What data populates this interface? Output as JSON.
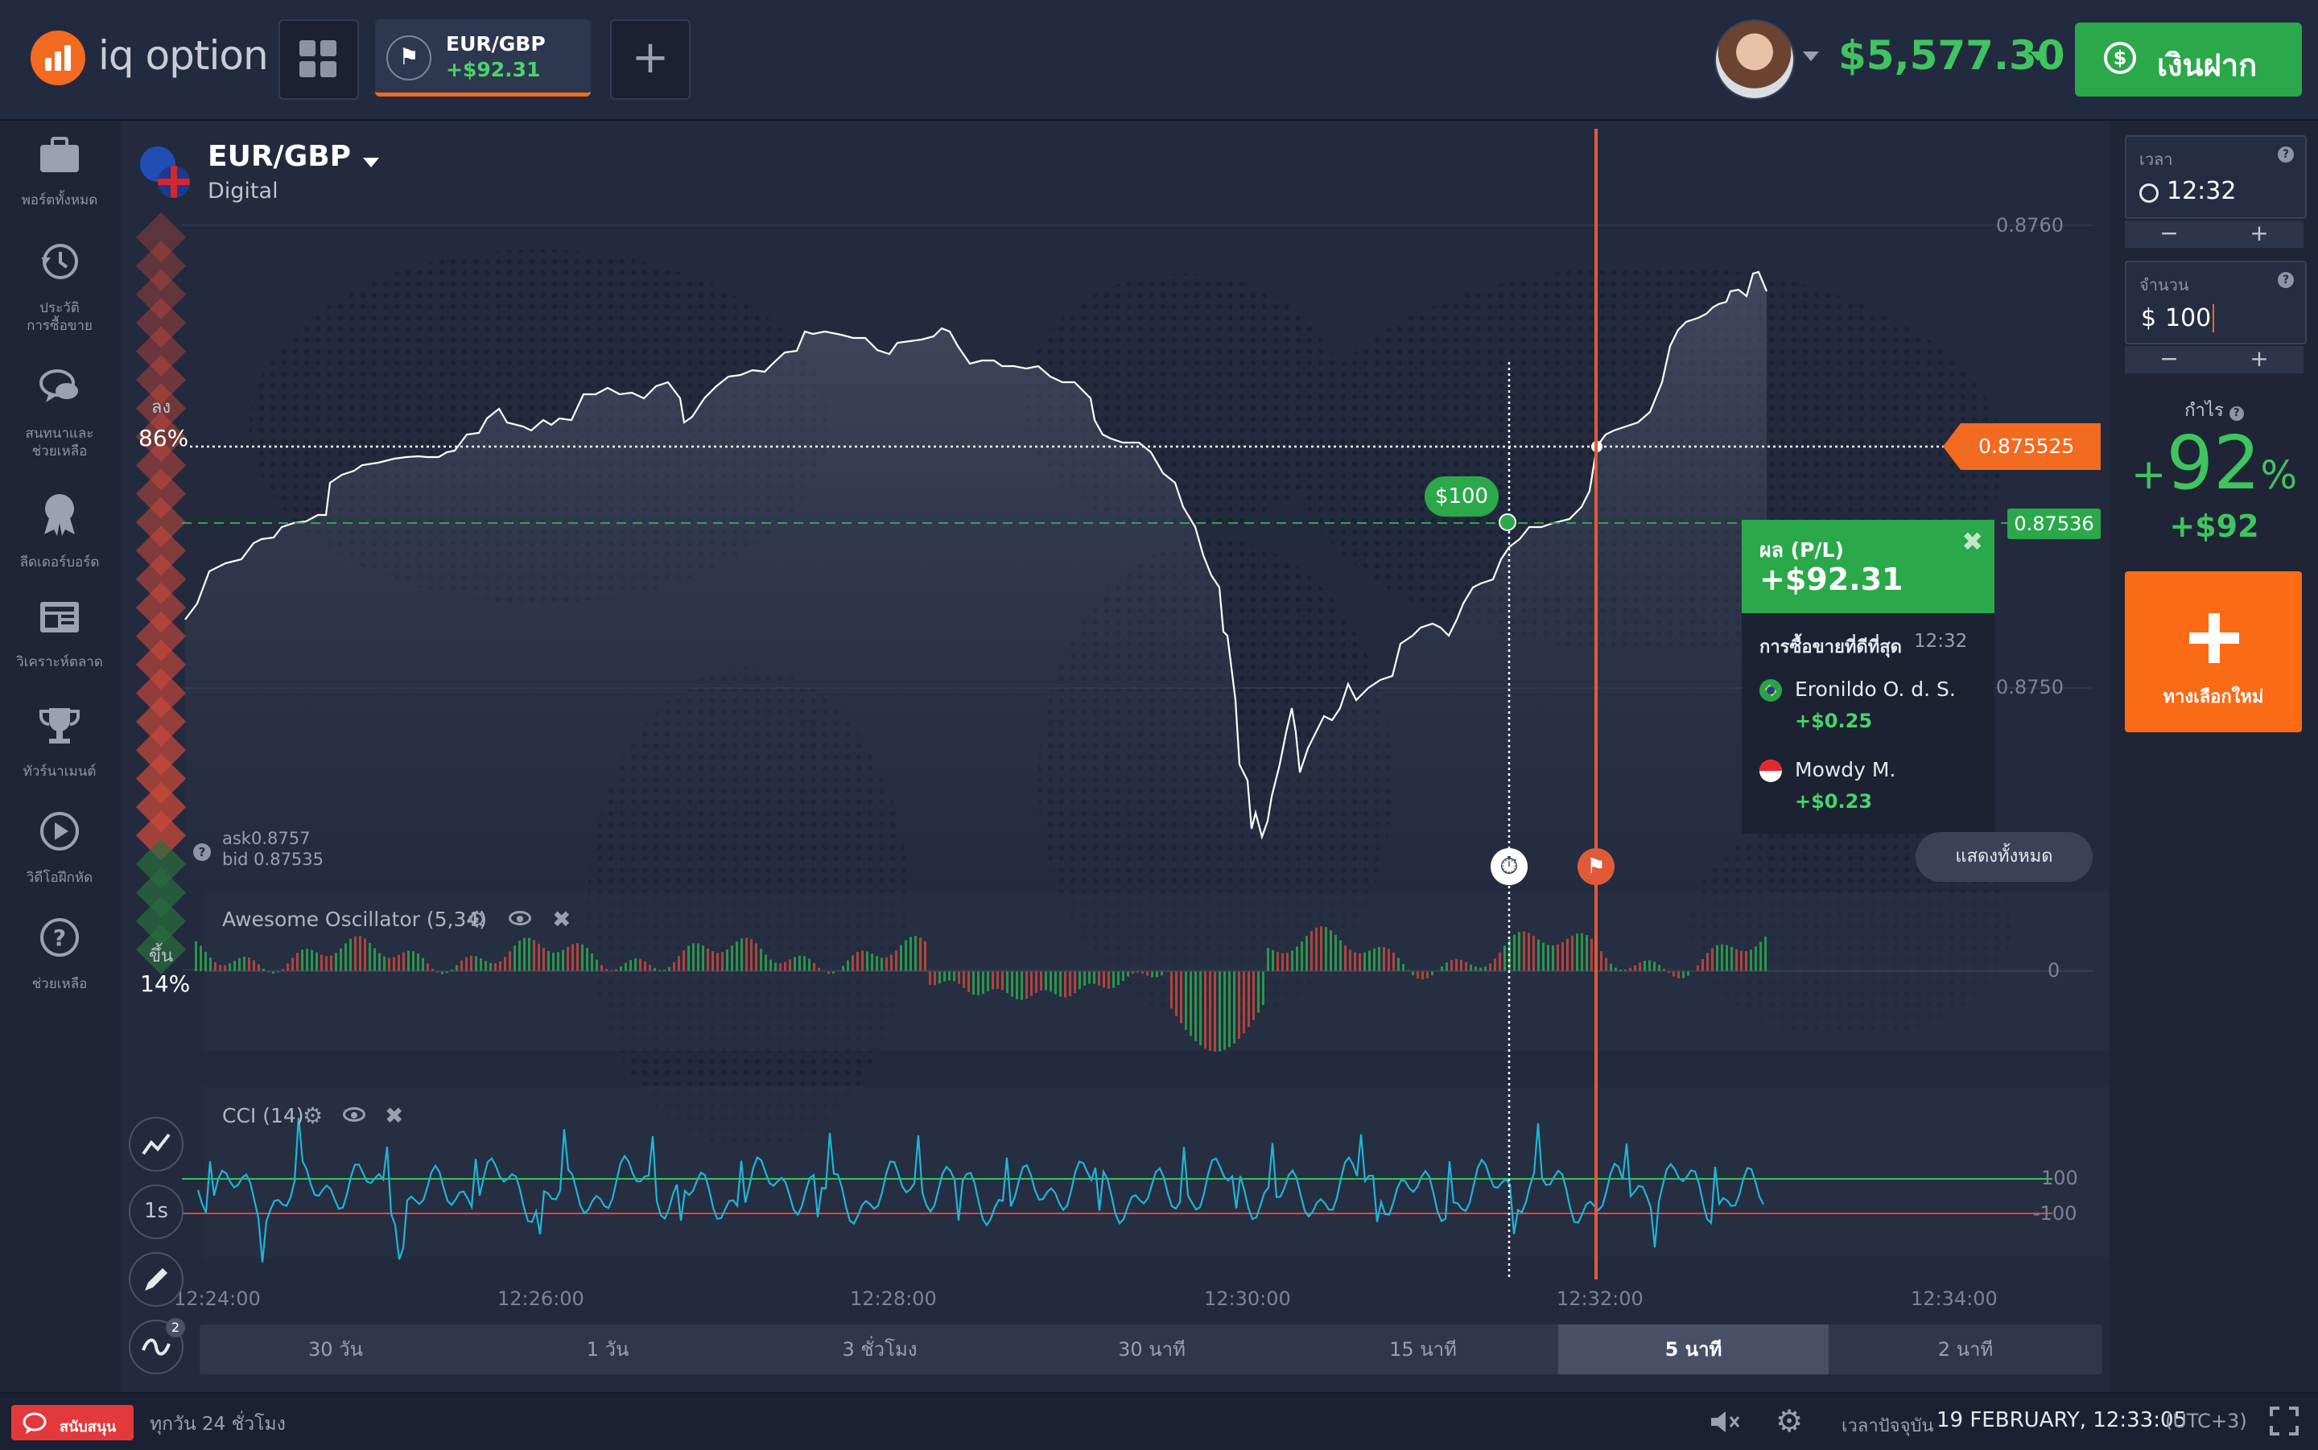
{
  "header": {
    "logo_text": "iq option",
    "asset_tab": {
      "name": "EUR/GBP",
      "profit": "+$92.31"
    },
    "balance": "$5,577.30",
    "deposit_label": "เงินฝาก"
  },
  "sidebar": {
    "items": [
      {
        "icon": "briefcase-icon",
        "label": "พอร์ตทั้งหมด"
      },
      {
        "icon": "history-icon",
        "label": "ประวัติ\nการซื้อขาย"
      },
      {
        "icon": "chat-icon",
        "label": "สนทนาและ\nช่วยเหลือ"
      },
      {
        "icon": "award-icon",
        "label": "ลีดเดอร์บอร์ด"
      },
      {
        "icon": "news-icon",
        "label": "วิเคราะห์ตลาด"
      },
      {
        "icon": "trophy-icon",
        "label": "ทัวร์นาเมนต์"
      },
      {
        "icon": "play-icon",
        "label": "วิดีโอฝึกหัด"
      },
      {
        "icon": "help-icon",
        "label": "ช่วยเหลือ"
      }
    ]
  },
  "asset": {
    "name": "EUR/GBP",
    "type": "Digital",
    "ask": "ask0.8757",
    "bid": "bid 0.87535"
  },
  "sentiment": {
    "down_label": "ลง",
    "down_pct": "86%",
    "up_label": "ขึ้น",
    "up_pct": "14%",
    "down_value": 0.86
  },
  "price_axis": {
    "p1": "0.8760",
    "p2": "0.8750",
    "current_price": "0.875525",
    "strike_price": "0.87536"
  },
  "trade": {
    "investment_badge": "$100",
    "pl_title": "ผล (P/L)",
    "pl_value": "+$92.31",
    "best_trades_title": "การซื้อขายที่ดีที่สุด",
    "best_trades_time": "12:32",
    "traders": [
      {
        "name": "Eronildo O. d. S.",
        "profit": "+$0.25",
        "flag": "brazil-flag-icon"
      },
      {
        "name": "Mowdy M.",
        "profit": "+$0.23",
        "flag": "indonesia-flag-icon"
      }
    ],
    "show_all": "แสดงทั้งหมด"
  },
  "indicators": {
    "ao": {
      "name": "Awesome Oscillator (5,34)",
      "zero": "0"
    },
    "cci": {
      "name": "CCI (14)",
      "upper": "100",
      "lower": "-100"
    }
  },
  "time_axis": [
    "12:24:00",
    "12:26:00",
    "12:28:00",
    "12:30:00",
    "12:32:00",
    "12:34:00"
  ],
  "timeframes": [
    "30 วัน",
    "1 วัน",
    "3 ชั่วโมง",
    "30 นาที",
    "15 นาที",
    "5 นาที",
    "2 นาที"
  ],
  "active_timeframe": "5 นาที",
  "tools": {
    "interval": "1s",
    "indicator_count": "2"
  },
  "right_panel": {
    "time_label": "เวลา",
    "time_value": "12:32",
    "amount_label": "จำนวน",
    "amount_currency": "$",
    "amount_value": "100",
    "profit_label": "กำไร",
    "profit_pct": "92",
    "profit_pct_sign": "+",
    "profit_pct_unit": "%",
    "profit_amount": "+$92",
    "new_option_label": "ทางเลือกใหม่"
  },
  "footer": {
    "support_label": "สนับสนุน",
    "hours": "ทุกวัน 24 ชั่วโมง",
    "current_time_label": "เวลาปัจจุบัน",
    "datetime": "19 FEBRUARY, 12:33:05",
    "timezone": "(UTC+3)"
  },
  "colors": {
    "accent_orange": "#f36a21",
    "green": "#2ba84a",
    "red": "#e74c3c",
    "cci_line": "#1fb5d6"
  }
}
